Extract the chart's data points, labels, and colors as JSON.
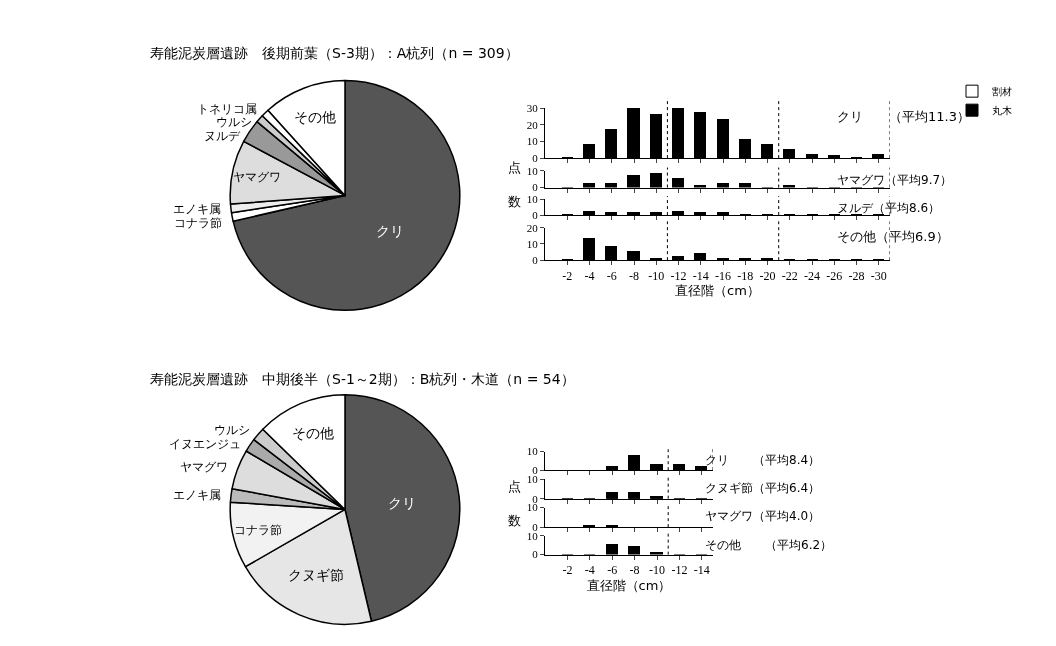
{
  "chart_data": [
    {
      "type": "pie",
      "title": "寿能泥炭層遺跡　後期前葉（S-3期）：A杭列（n = 309）",
      "categories": [
        "クリ",
        "コナラ節",
        "エノキ属",
        "ヤマグワ",
        "ヌルデ",
        "ウルシ",
        "トネリコ属",
        "その他"
      ],
      "values": [
        71.4,
        1.2,
        1.2,
        9.0,
        3.3,
        1.1,
        1.1,
        11.7
      ],
      "colors": [
        "#555555",
        "#ffffff",
        "#eeeeee",
        "#dddddd",
        "#999999",
        "#cccccc",
        "#ffffff",
        "#ffffff"
      ]
    },
    {
      "type": "bar",
      "title": "クリ　　（平均11.3）",
      "stacked": true,
      "legend": "top right",
      "tick_labels": "y",
      "x": [
        -2,
        -4,
        -6,
        -8,
        -10,
        -12,
        -14,
        -16,
        -18,
        -20,
        -22,
        -24,
        -26,
        -28,
        -30
      ],
      "series": [
        {
          "name": "割材",
          "color": "#ffffff",
          "values": [
            null,
            null,
            null,
            null,
            null,
            null,
            null,
            null,
            null,
            null,
            null,
            null,
            null,
            null,
            null
          ]
        },
        {
          "name": "丸木",
          "color": "#000000",
          "values": [
            0,
            8,
            17,
            30,
            26,
            30,
            27,
            23,
            11,
            8,
            5,
            2,
            1,
            0,
            2
          ]
        }
      ],
      "xlim": [
        0,
        -31
      ],
      "xticks": [
        -2,
        -4,
        -6,
        -8,
        -10,
        -12,
        -14,
        -16,
        -18,
        -20,
        -22,
        -24,
        -26,
        -28,
        -30
      ],
      "ylim": [
        0,
        30
      ],
      "yticks": [
        0,
        10,
        20,
        30
      ],
      "ylabel": "点数",
      "ref_lines": [
        {
          "axis": "x",
          "value": -11,
          "color": "#000000",
          "line_style": "dashed"
        },
        {
          "axis": "x",
          "value": -21,
          "color": "#000000",
          "line_style": "dashed"
        },
        {
          "axis": "x",
          "value": -31,
          "color": "#000000",
          "line_style": "dashed"
        }
      ]
    },
    {
      "type": "bar",
      "title": "ヤマグワ（平均9.7）",
      "tick_labels": "y",
      "x": [
        -2,
        -4,
        -6,
        -8,
        -10,
        -12,
        -14,
        -16,
        -18,
        -20,
        -22,
        -24,
        -26,
        -28,
        -30
      ],
      "series": [
        {
          "color": "#000000",
          "values": [
            0,
            2,
            2,
            7,
            8,
            5,
            1,
            2,
            2,
            0,
            1,
            0,
            0,
            0,
            0
          ]
        }
      ],
      "xlim": [
        0,
        -31
      ],
      "xticks": [
        -2,
        -4,
        -6,
        -8,
        -10,
        -12,
        -14,
        -16,
        -18,
        -20,
        -22,
        -24,
        -26,
        -28,
        -30
      ],
      "ylim": [
        0,
        10
      ],
      "yticks": [
        0,
        10
      ],
      "ref_lines": [
        {
          "axis": "x",
          "value": -11,
          "color": "#000000",
          "line_style": "dashed"
        },
        {
          "axis": "x",
          "value": -21,
          "color": "#000000",
          "line_style": "dashed"
        },
        {
          "axis": "x",
          "value": -31,
          "color": "#000000",
          "line_style": "dashed"
        }
      ]
    },
    {
      "type": "bar",
      "title": "ヌルデ（平均8.6）",
      "tick_labels": "y",
      "x": [
        -2,
        -4,
        -6,
        -8,
        -10,
        -12,
        -14,
        -16,
        -18,
        -20,
        -22,
        -24,
        -26,
        -28,
        -30
      ],
      "series": [
        {
          "color": "#000000",
          "values": [
            0,
            2,
            1,
            1,
            1,
            2,
            1,
            1,
            0,
            0,
            0,
            0,
            0,
            0,
            0
          ]
        }
      ],
      "xlim": [
        0,
        -31
      ],
      "xticks": [
        -2,
        -4,
        -6,
        -8,
        -10,
        -12,
        -14,
        -16,
        -18,
        -20,
        -22,
        -24,
        -26,
        -28,
        -30
      ],
      "ylim": [
        0,
        10
      ],
      "yticks": [
        0,
        10
      ],
      "ref_lines": [
        {
          "axis": "x",
          "value": -11,
          "color": "#000000",
          "line_style": "dashed"
        },
        {
          "axis": "x",
          "value": -21,
          "color": "#000000",
          "line_style": "dashed"
        },
        {
          "axis": "x",
          "value": -31,
          "color": "#000000",
          "line_style": "dashed"
        }
      ]
    },
    {
      "type": "bar",
      "title": "その他（平均6.9）",
      "xlabel": "直径階（cm）",
      "x": [
        -2,
        -4,
        -6,
        -8,
        -10,
        -12,
        -14,
        -16,
        -18,
        -20,
        -22,
        -24,
        -26,
        -28,
        -30
      ],
      "series": [
        {
          "color": "#000000",
          "values": [
            0,
            13,
            8,
            5,
            1,
            2,
            4,
            1,
            1,
            1,
            0,
            0,
            0,
            0,
            0
          ]
        }
      ],
      "xlim": [
        0,
        -31
      ],
      "xticks": [
        -2,
        -4,
        -6,
        -8,
        -10,
        -12,
        -14,
        -16,
        -18,
        -20,
        -22,
        -24,
        -26,
        -28,
        -30
      ],
      "ylim": [
        0,
        20
      ],
      "yticks": [
        0,
        10,
        20
      ],
      "ref_lines": [
        {
          "axis": "x",
          "value": -11,
          "color": "#000000",
          "line_style": "dashed"
        },
        {
          "axis": "x",
          "value": -21,
          "color": "#000000",
          "line_style": "dashed"
        },
        {
          "axis": "x",
          "value": -31,
          "color": "#000000",
          "line_style": "dashed"
        }
      ]
    },
    {
      "type": "pie",
      "title": "寿能泥炭層遺跡　中期後半（S-1～2期）：B杭列・木道（n = 54）",
      "categories": [
        "クリ",
        "クヌギ節",
        "コナラ節",
        "エノキ属",
        "ヤマグワ",
        "イヌエンジュ",
        "ウルシ",
        "その他"
      ],
      "values": [
        46.3,
        20.4,
        9.3,
        1.9,
        5.6,
        1.9,
        1.9,
        12.7
      ],
      "colors": [
        "#555555",
        "#e6e6e6",
        "#f2f2f2",
        "#bbbbbb",
        "#dddddd",
        "#aaaaaa",
        "#cccccc",
        "#ffffff"
      ]
    },
    {
      "type": "bar",
      "title": "クリ　　（平均8.4）",
      "tick_labels": "y",
      "x": [
        -2,
        -4,
        -6,
        -8,
        -10,
        -12,
        -14
      ],
      "series": [
        {
          "color": "#000000",
          "values": [
            0,
            0,
            2,
            8,
            3,
            3,
            2
          ]
        }
      ],
      "xlim": [
        0,
        -15
      ],
      "xticks": [
        -2,
        -4,
        -6,
        -8,
        -10,
        -12,
        -14
      ],
      "ylim": [
        0,
        10
      ],
      "yticks": [
        0,
        10
      ],
      "ylabel": "点数",
      "ref_lines": [
        {
          "axis": "x",
          "value": -11,
          "color": "#000000",
          "line_style": "dashed"
        },
        {
          "axis": "x",
          "value": -15,
          "color": "#000000",
          "line_style": "dashed"
        }
      ]
    },
    {
      "type": "bar",
      "title": "クヌギ節（平均6.4）",
      "tick_labels": "y",
      "x": [
        -2,
        -4,
        -6,
        -8,
        -10,
        -12,
        -14
      ],
      "series": [
        {
          "color": "#000000",
          "values": [
            0,
            0,
            3,
            3,
            1,
            0,
            0
          ]
        }
      ],
      "xlim": [
        0,
        -15
      ],
      "xticks": [
        -2,
        -4,
        -6,
        -8,
        -10,
        -12,
        -14
      ],
      "ylim": [
        0,
        10
      ],
      "yticks": [
        0,
        10
      ],
      "ref_lines": [
        {
          "axis": "x",
          "value": -11,
          "color": "#000000",
          "line_style": "dashed"
        }
      ]
    },
    {
      "type": "bar",
      "title": "ヤマグワ（平均4.0）",
      "tick_labels": "y",
      "x": [
        -2,
        -4,
        -6,
        -8,
        -10,
        -12,
        -14
      ],
      "series": [
        {
          "color": "#000000",
          "values": [
            0,
            1,
            1,
            0,
            0,
            0,
            0
          ]
        }
      ],
      "xlim": [
        0,
        -15
      ],
      "xticks": [
        -2,
        -4,
        -6,
        -8,
        -10,
        -12,
        -14
      ],
      "ylim": [
        0,
        10
      ],
      "yticks": [
        0,
        10
      ],
      "ref_lines": [
        {
          "axis": "x",
          "value": -11,
          "color": "#000000",
          "line_style": "dashed"
        }
      ]
    },
    {
      "type": "bar",
      "title": "その他　　（平均6.2）",
      "xlabel": "直径階（cm）",
      "x": [
        -2,
        -4,
        -6,
        -8,
        -10,
        -12,
        -14
      ],
      "series": [
        {
          "color": "#000000",
          "values": [
            0,
            0,
            5,
            4,
            1,
            0,
            0
          ]
        }
      ],
      "xlim": [
        0,
        -15
      ],
      "xticks": [
        -2,
        -4,
        -6,
        -8,
        -10,
        -12,
        -14
      ],
      "ylim": [
        0,
        10
      ],
      "yticks": [
        0,
        10
      ],
      "ref_lines": [
        {
          "axis": "x",
          "value": -11,
          "color": "#000000",
          "line_style": "dashed"
        }
      ]
    }
  ]
}
